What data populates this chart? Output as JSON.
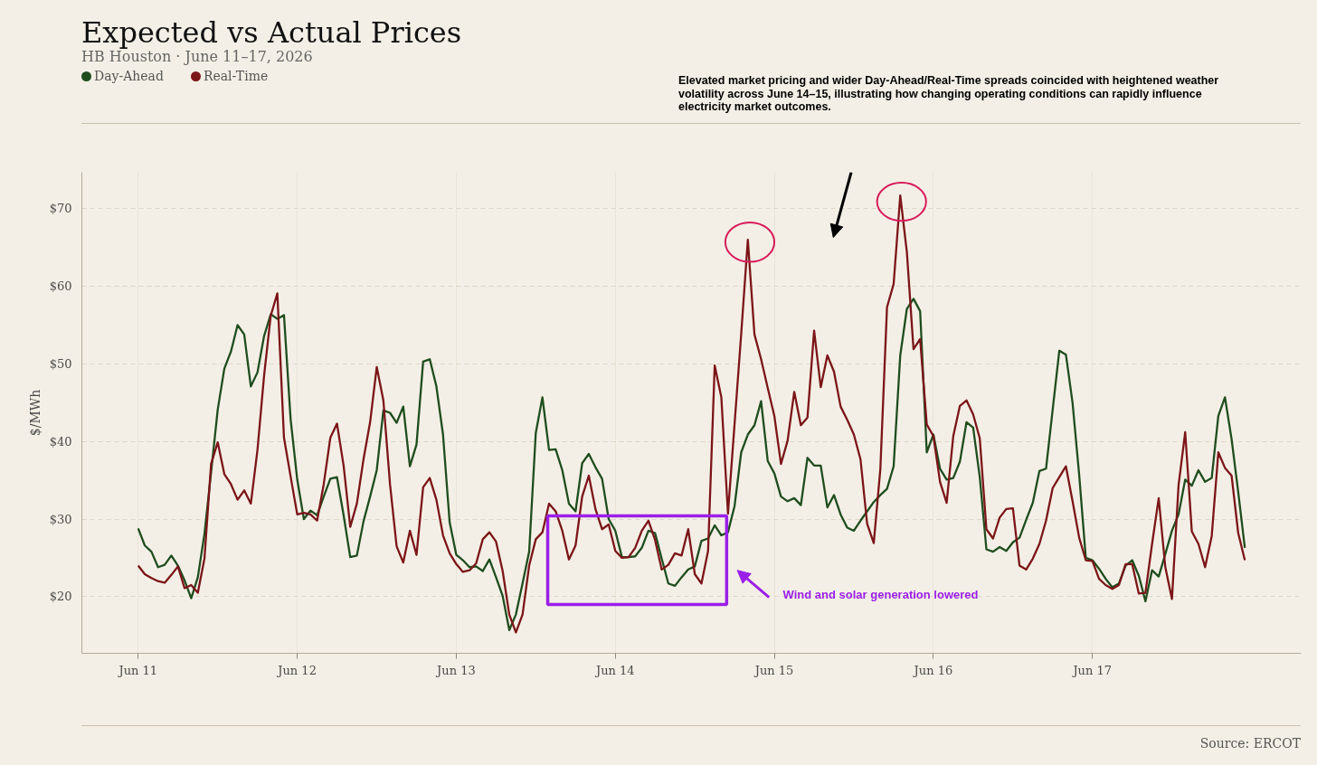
{
  "chart_data": {
    "type": "line",
    "title": "Expected vs Actual Prices",
    "subtitle": "HB Houston · June 11–17, 2026",
    "ylabel": "$/MWh",
    "annotations": [
      "Elevated market pricing and wider Day-Ahead/Real-Time spreads coincided with heightened weather volatility across June 14–15, illustrating how changing operating conditions can rapidly influence electricity market outcomes.",
      "Wind and solar generation lowered",
      "Source: ERCOT"
    ],
    "x": [
      "2026-06-11T00:00",
      "2026-06-11T01:00",
      "2026-06-11T02:00",
      "2026-06-11T03:00",
      "2026-06-11T04:00",
      "2026-06-11T05:00",
      "2026-06-11T06:00",
      "2026-06-11T07:00",
      "2026-06-11T08:00",
      "2026-06-11T09:00",
      "2026-06-11T10:00",
      "2026-06-11T11:00",
      "2026-06-11T12:00",
      "2026-06-11T13:00",
      "2026-06-11T14:00",
      "2026-06-11T15:00",
      "2026-06-11T16:00",
      "2026-06-11T17:00",
      "2026-06-11T18:00",
      "2026-06-11T19:00",
      "2026-06-11T20:00",
      "2026-06-11T21:00",
      "2026-06-11T22:00",
      "2026-06-11T23:00",
      "2026-06-12T00:00",
      "2026-06-12T01:00",
      "2026-06-12T02:00",
      "2026-06-12T03:00",
      "2026-06-12T04:00",
      "2026-06-12T05:00",
      "2026-06-12T06:00",
      "2026-06-12T07:00",
      "2026-06-12T08:00",
      "2026-06-12T09:00",
      "2026-06-12T10:00",
      "2026-06-12T11:00",
      "2026-06-12T12:00",
      "2026-06-12T13:00",
      "2026-06-12T14:00",
      "2026-06-12T15:00",
      "2026-06-12T16:00",
      "2026-06-12T17:00",
      "2026-06-12T18:00",
      "2026-06-12T19:00",
      "2026-06-12T20:00",
      "2026-06-12T21:00",
      "2026-06-12T22:00",
      "2026-06-12T23:00",
      "2026-06-13T00:00",
      "2026-06-13T01:00",
      "2026-06-13T02:00",
      "2026-06-13T03:00",
      "2026-06-13T04:00",
      "2026-06-13T05:00",
      "2026-06-13T06:00",
      "2026-06-13T07:00",
      "2026-06-13T08:00",
      "2026-06-13T09:00",
      "2026-06-13T10:00",
      "2026-06-13T11:00",
      "2026-06-13T12:00",
      "2026-06-13T13:00",
      "2026-06-13T14:00",
      "2026-06-13T15:00",
      "2026-06-13T16:00",
      "2026-06-13T17:00",
      "2026-06-13T18:00",
      "2026-06-13T19:00",
      "2026-06-13T20:00",
      "2026-06-13T21:00",
      "2026-06-13T22:00",
      "2026-06-13T23:00",
      "2026-06-14T00:00",
      "2026-06-14T01:00",
      "2026-06-14T02:00",
      "2026-06-14T03:00",
      "2026-06-14T04:00",
      "2026-06-14T05:00",
      "2026-06-14T06:00",
      "2026-06-14T07:00",
      "2026-06-14T08:00",
      "2026-06-14T09:00",
      "2026-06-14T10:00",
      "2026-06-14T11:00",
      "2026-06-14T12:00",
      "2026-06-14T13:00",
      "2026-06-14T14:00",
      "2026-06-14T15:00",
      "2026-06-14T16:00",
      "2026-06-14T17:00",
      "2026-06-14T18:00",
      "2026-06-14T19:00",
      "2026-06-14T20:00",
      "2026-06-14T21:00",
      "2026-06-14T22:00",
      "2026-06-14T23:00",
      "2026-06-15T00:00",
      "2026-06-15T01:00",
      "2026-06-15T02:00",
      "2026-06-15T03:00",
      "2026-06-15T04:00",
      "2026-06-15T05:00",
      "2026-06-15T06:00",
      "2026-06-15T07:00",
      "2026-06-15T08:00",
      "2026-06-15T09:00",
      "2026-06-15T10:00",
      "2026-06-15T11:00",
      "2026-06-15T12:00",
      "2026-06-15T13:00",
      "2026-06-15T14:00",
      "2026-06-15T15:00",
      "2026-06-15T16:00",
      "2026-06-15T17:00",
      "2026-06-15T18:00",
      "2026-06-15T19:00",
      "2026-06-15T20:00",
      "2026-06-15T21:00",
      "2026-06-15T22:00",
      "2026-06-15T23:00",
      "2026-06-16T00:00",
      "2026-06-16T01:00",
      "2026-06-16T02:00",
      "2026-06-16T03:00",
      "2026-06-16T04:00",
      "2026-06-16T05:00",
      "2026-06-16T06:00",
      "2026-06-16T07:00",
      "2026-06-16T08:00",
      "2026-06-16T09:00",
      "2026-06-16T10:00",
      "2026-06-16T11:00",
      "2026-06-16T12:00",
      "2026-06-16T13:00",
      "2026-06-16T14:00",
      "2026-06-16T15:00",
      "2026-06-16T16:00",
      "2026-06-16T17:00",
      "2026-06-16T18:00",
      "2026-06-16T19:00",
      "2026-06-16T20:00",
      "2026-06-16T21:00",
      "2026-06-16T22:00",
      "2026-06-16T23:00",
      "2026-06-17T00:00",
      "2026-06-17T01:00",
      "2026-06-17T02:00",
      "2026-06-17T03:00",
      "2026-06-17T04:00",
      "2026-06-17T05:00",
      "2026-06-17T06:00",
      "2026-06-17T07:00",
      "2026-06-17T08:00",
      "2026-06-17T09:00",
      "2026-06-17T10:00",
      "2026-06-17T11:00",
      "2026-06-17T12:00",
      "2026-06-17T13:00",
      "2026-06-17T14:00",
      "2026-06-17T15:00",
      "2026-06-17T16:00",
      "2026-06-17T17:00",
      "2026-06-17T18:00",
      "2026-06-17T19:00",
      "2026-06-17T20:00",
      "2026-06-17T21:00",
      "2026-06-17T22:00",
      "2026-06-17T23:00"
    ],
    "series": [
      {
        "name": "Day-Ahead",
        "color": "#1e4d1e",
        "values": [
          28.8,
          26.6,
          25.8,
          23.8,
          24.1,
          25.3,
          24.0,
          22.1,
          19.8,
          22.5,
          28.1,
          36.0,
          44.1,
          49.4,
          51.6,
          55.0,
          53.8,
          47.1,
          48.9,
          53.6,
          56.4,
          55.8,
          56.3,
          42.9,
          35.1,
          30.0,
          31.1,
          30.5,
          32.9,
          35.2,
          35.4,
          30.5,
          25.1,
          25.3,
          29.7,
          32.9,
          36.3,
          44.0,
          43.7,
          42.4,
          44.5,
          36.8,
          39.6,
          50.3,
          50.6,
          47.1,
          40.9,
          29.6,
          25.4,
          24.7,
          23.8,
          23.9,
          23.3,
          24.8,
          22.5,
          20.1,
          15.7,
          17.7,
          21.7,
          25.8,
          41.1,
          45.7,
          38.9,
          39.0,
          36.3,
          32.0,
          31.0,
          37.2,
          38.4,
          36.7,
          35.2,
          30.0,
          28.5,
          25.1,
          25.1,
          25.2,
          26.3,
          28.5,
          28.2,
          24.9,
          21.7,
          21.4,
          22.5,
          23.5,
          23.9,
          27.2,
          27.5,
          29.2,
          27.9,
          28.3,
          31.7,
          38.6,
          40.9,
          42.1,
          45.2,
          37.5,
          35.9,
          32.9,
          32.3,
          32.7,
          31.8,
          37.9,
          36.9,
          36.9,
          31.5,
          33.1,
          30.6,
          28.9,
          28.5,
          29.8,
          31.0,
          32.2,
          33.1,
          33.9,
          36.8,
          51.1,
          57.1,
          58.4,
          56.8,
          38.6,
          40.9,
          36.5,
          35.1,
          35.3,
          37.4,
          42.5,
          41.8,
          35.4,
          26.1,
          25.8,
          26.4,
          25.9,
          27.0,
          27.6,
          29.9,
          32.1,
          36.2,
          36.5,
          44.1,
          51.7,
          51.2,
          45.0,
          35.7,
          25.0,
          24.7,
          23.6,
          22.3,
          21.2,
          21.7,
          24.0,
          24.7,
          22.7,
          19.4,
          23.4,
          22.6,
          25.5,
          28.5,
          30.6,
          35.1,
          34.3,
          36.3,
          34.8,
          35.3,
          43.3,
          45.7,
          40.3,
          33.5,
          26.3
        ]
      },
      {
        "name": "Real-Time",
        "color": "#7b1518",
        "values": [
          24.0,
          22.9,
          22.4,
          22.0,
          21.8,
          22.8,
          23.9,
          21.1,
          21.5,
          20.5,
          24.9,
          37.1,
          39.9,
          35.8,
          34.5,
          32.5,
          33.7,
          32.0,
          38.9,
          48.5,
          56.2,
          59.1,
          40.5,
          35.5,
          30.6,
          30.8,
          30.6,
          29.8,
          34.5,
          40.5,
          42.3,
          36.9,
          29.0,
          32.0,
          37.7,
          42.5,
          49.6,
          45.3,
          34.5,
          26.5,
          24.4,
          28.5,
          25.4,
          34.1,
          35.3,
          32.5,
          27.9,
          25.6,
          24.2,
          23.2,
          23.4,
          24.3,
          27.4,
          28.3,
          27.1,
          23.3,
          17.7,
          15.4,
          17.7,
          24.0,
          27.4,
          28.3,
          32.0,
          31.0,
          28.5,
          24.8,
          26.6,
          32.9,
          35.6,
          31.3,
          28.7,
          29.3,
          25.9,
          25.0,
          25.1,
          26.3,
          28.5,
          29.8,
          27.3,
          23.5,
          24.1,
          25.6,
          25.3,
          28.7,
          22.9,
          21.7,
          25.9,
          49.8,
          45.7,
          30.7,
          42.3,
          53.9,
          66.0,
          53.8,
          50.6,
          46.9,
          43.3,
          37.1,
          40.1,
          46.4,
          42.1,
          43.1,
          54.3,
          47.0,
          51.1,
          49.0,
          44.5,
          42.8,
          40.9,
          37.7,
          29.4,
          26.9,
          36.5,
          57.3,
          60.3,
          71.7,
          64.4,
          51.9,
          53.2,
          42.2,
          40.7,
          34.8,
          32.1,
          40.7,
          44.6,
          45.3,
          43.5,
          40.4,
          28.7,
          27.5,
          30.2,
          31.3,
          31.4,
          24.0,
          23.5,
          24.9,
          26.8,
          29.8,
          34.0,
          35.4,
          36.8,
          32.3,
          27.6,
          24.7,
          24.6,
          22.3,
          21.5,
          21.0,
          21.5,
          24.2,
          24.2,
          20.4,
          20.5,
          26.8,
          32.7,
          23.8,
          19.7,
          34.4,
          41.2,
          28.4,
          26.8,
          23.8,
          27.8,
          38.6,
          36.6,
          35.6,
          28.2,
          24.7
        ]
      }
    ],
    "xlim": [
      "2026-06-10T15:30",
      "2026-06-18T07:30"
    ],
    "ylim": [
      12.7,
      74.7
    ],
    "xticks": [
      {
        "value": "2026-06-11",
        "label": "Jun 11"
      },
      {
        "value": "2026-06-12",
        "label": "Jun 12"
      },
      {
        "value": "2026-06-13",
        "label": "Jun 13"
      },
      {
        "value": "2026-06-14",
        "label": "Jun 14"
      },
      {
        "value": "2026-06-15",
        "label": "Jun 15"
      },
      {
        "value": "2026-06-16",
        "label": "Jun 16"
      },
      {
        "value": "2026-06-17",
        "label": "Jun 17"
      }
    ],
    "yticks": [
      {
        "value": 20,
        "label": "$20"
      },
      {
        "value": 30,
        "label": "$30"
      },
      {
        "value": 40,
        "label": "$40"
      },
      {
        "value": 50,
        "label": "$50"
      },
      {
        "value": 60,
        "label": "$60"
      },
      {
        "value": 70,
        "label": "$70"
      }
    ],
    "grid": true,
    "legend": "top left"
  }
}
